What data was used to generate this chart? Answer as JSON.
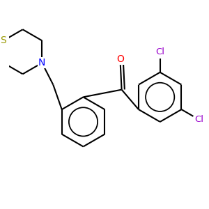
{
  "background_color": "#ffffff",
  "bond_color": "#000000",
  "atom_colors": {
    "S": "#999900",
    "N": "#0000ff",
    "O": "#ff0000",
    "Cl": "#9900cc",
    "C": "#000000"
  },
  "bond_lw": 1.5,
  "figsize": [
    3.0,
    3.0
  ],
  "dpi": 100,
  "xlim": [
    0.5,
    8.5
  ],
  "ylim": [
    0.5,
    8.5
  ]
}
